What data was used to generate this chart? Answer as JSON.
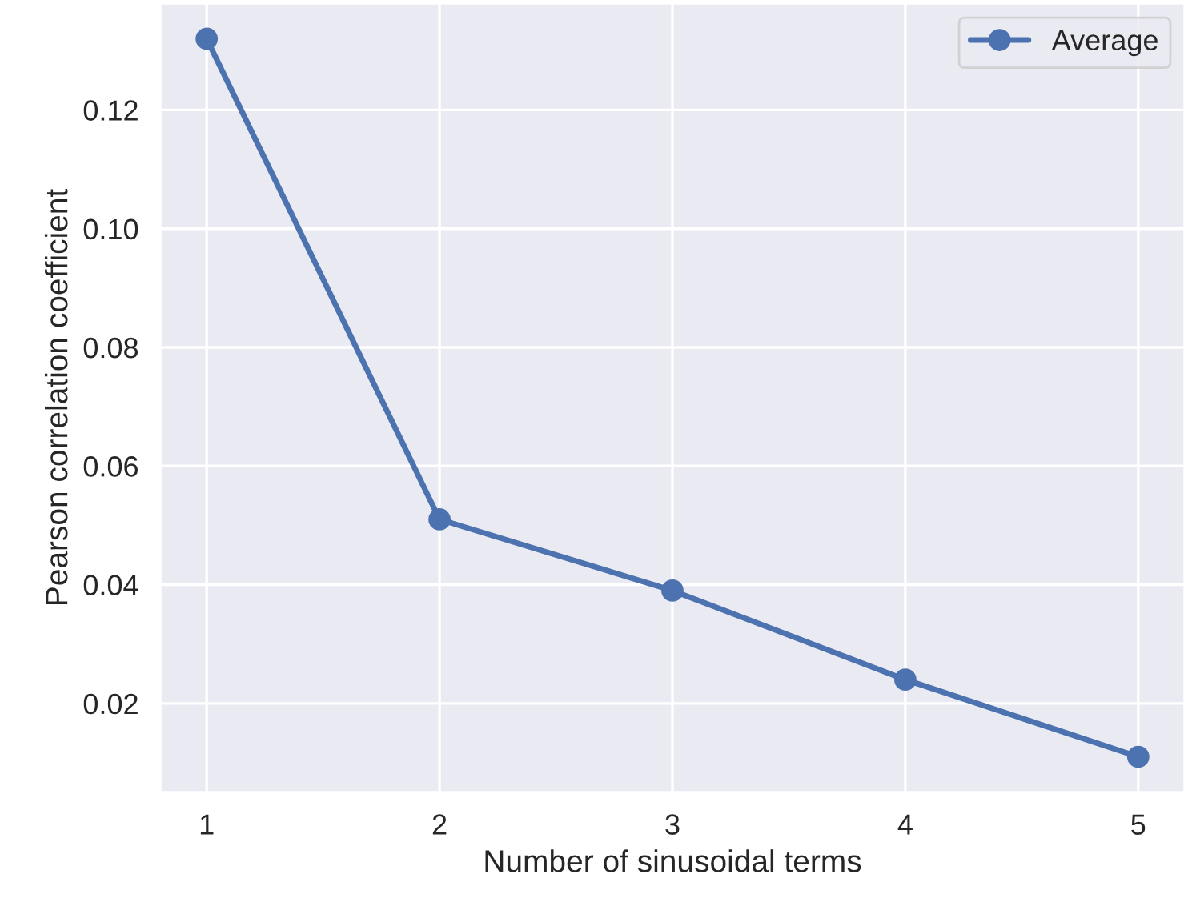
{
  "chart_data": {
    "type": "line",
    "xlabel": "Number of sinusoidal terms",
    "ylabel": "Pearson correlation coefficient",
    "x": [
      1,
      2,
      3,
      4,
      5
    ],
    "series": [
      {
        "name": "Average",
        "color": "#4c72b0",
        "values": [
          0.132,
          0.051,
          0.039,
          0.024,
          0.011
        ]
      }
    ],
    "xlim": [
      0.8,
      5.2
    ],
    "ylim": [
      0.005,
      0.138
    ],
    "xticks": [
      1,
      2,
      3,
      4,
      5
    ],
    "yticks": [
      {
        "value": 0.02,
        "label": "0.02"
      },
      {
        "value": 0.04,
        "label": "0.04"
      },
      {
        "value": 0.06,
        "label": "0.06"
      },
      {
        "value": 0.08,
        "label": "0.08"
      },
      {
        "value": 0.1,
        "label": "0.10"
      },
      {
        "value": 0.12,
        "label": "0.12"
      }
    ],
    "grid": true,
    "legend": "top right",
    "marker": "circle",
    "line_style": "solid"
  }
}
